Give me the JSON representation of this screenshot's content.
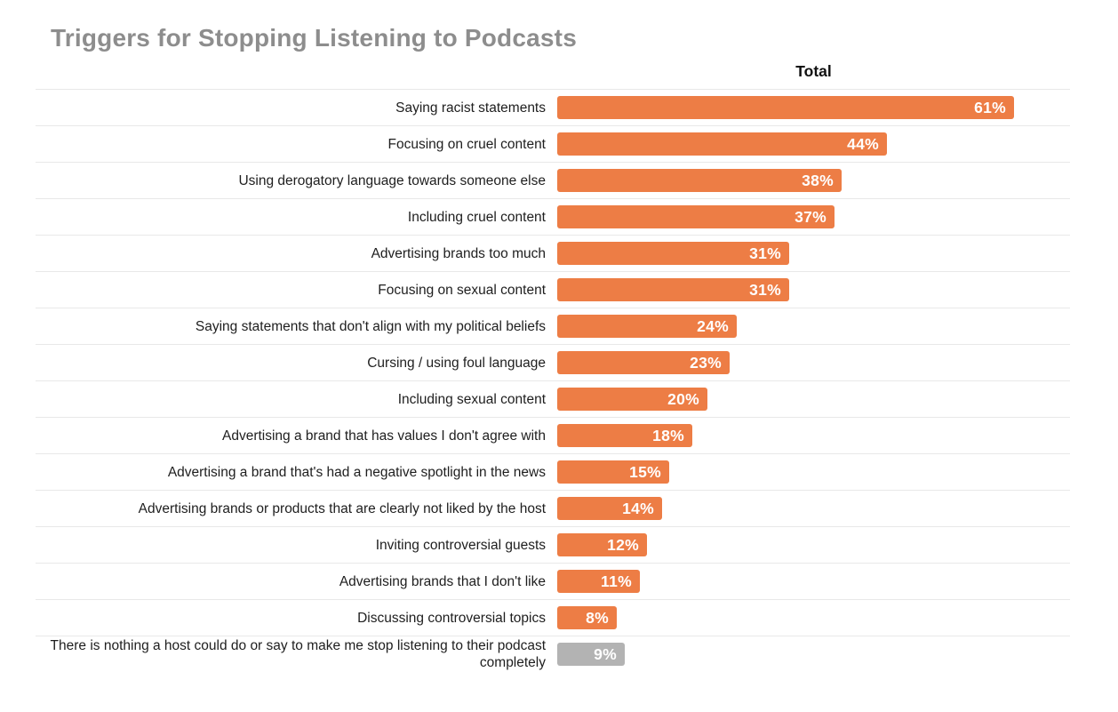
{
  "title": "Triggers for Stopping Listening to Podcasts",
  "column_header": "Total",
  "colors": {
    "bar_orange": "#ED7D45",
    "bar_gray": "#B3B3B3",
    "title_text": "#8D8D8D",
    "label_text": "#1E1E1E",
    "value_text": "#FFFFFF",
    "separator": "#E8E8E8",
    "background": "#FFFFFF"
  },
  "chart_data": {
    "type": "bar",
    "orientation": "horizontal",
    "title": "Triggers for Stopping Listening to Podcasts",
    "series_label": "Total",
    "unit": "percent",
    "grid": false,
    "legend": false,
    "categories": [
      "Saying racist statements",
      "Focusing on cruel content",
      "Using derogatory language towards someone else",
      "Including cruel content",
      "Advertising brands too much",
      "Focusing on sexual content",
      "Saying statements that don't align with my political beliefs",
      "Cursing / using foul language",
      "Including sexual content",
      "Advertising a brand that has values I don't agree with",
      "Advertising a brand that's had a negative spotlight in the news",
      "Advertising brands or products that are clearly not liked by the host",
      "Inviting controversial guests",
      "Advertising brands that I don't like",
      "Discussing controversial topics",
      "There is nothing a host could do or say to make me stop listening to their podcast completely"
    ],
    "values": [
      61,
      44,
      38,
      37,
      31,
      31,
      24,
      23,
      20,
      18,
      15,
      14,
      12,
      11,
      8,
      9
    ],
    "value_labels": [
      "61%",
      "44%",
      "38%",
      "37%",
      "31%",
      "31%",
      "24%",
      "23%",
      "20%",
      "18%",
      "15%",
      "14%",
      "12%",
      "11%",
      "8%",
      "9%"
    ],
    "muted_rows": [
      15
    ]
  }
}
